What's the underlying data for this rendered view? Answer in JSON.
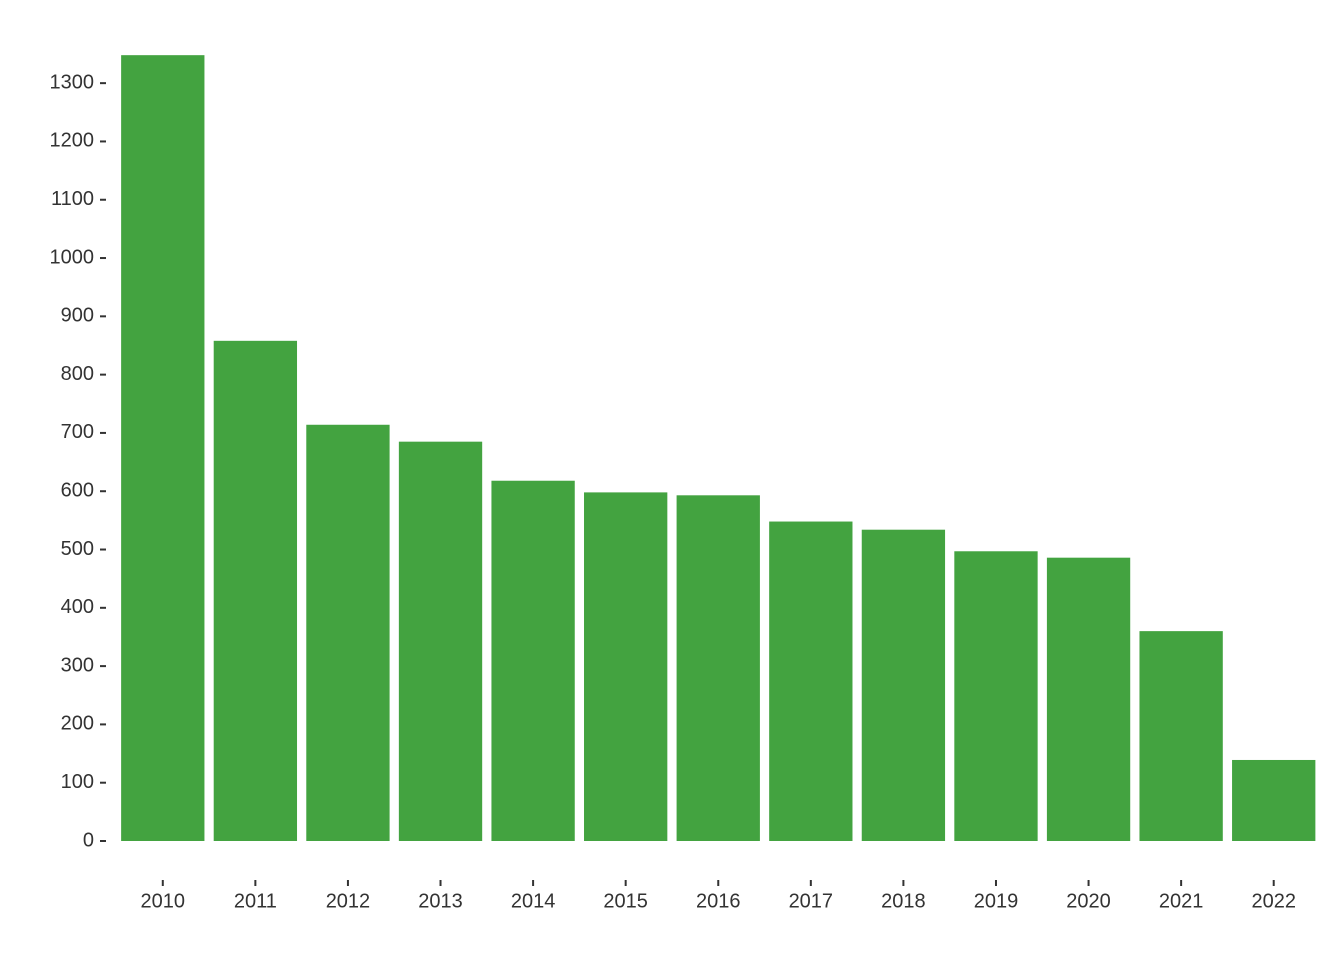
{
  "chart_data": {
    "type": "bar",
    "categories": [
      "2010",
      "2011",
      "2012",
      "2013",
      "2014",
      "2015",
      "2016",
      "2017",
      "2018",
      "2019",
      "2020",
      "2021",
      "2022"
    ],
    "values": [
      1348,
      858,
      714,
      685,
      618,
      598,
      593,
      548,
      534,
      497,
      486,
      360,
      139
    ],
    "color": "#43a340",
    "ylim": [
      0,
      1350
    ],
    "yticks": [
      0,
      100,
      200,
      300,
      400,
      500,
      600,
      700,
      800,
      900,
      1000,
      1100,
      1200,
      1300
    ],
    "grid": false
  }
}
